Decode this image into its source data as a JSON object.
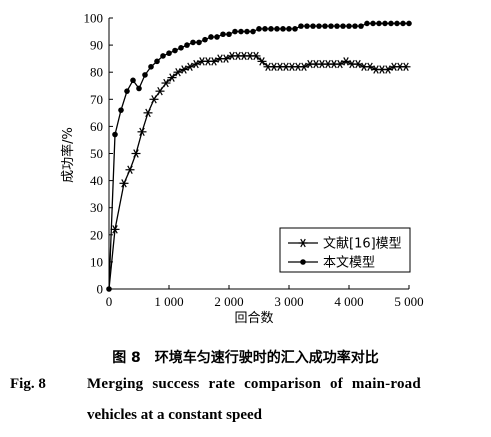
{
  "chart_data": {
    "type": "line",
    "xlabel": "回合数",
    "ylabel": "成功率/%",
    "xlim": [
      0,
      5000
    ],
    "ylim": [
      0,
      100
    ],
    "x_ticks": [
      "0",
      "1 000",
      "2 000",
      "3 000",
      "4 000",
      "5 000"
    ],
    "y_ticks": [
      "0",
      "10",
      "20",
      "30",
      "40",
      "50",
      "60",
      "70",
      "80",
      "90",
      "100"
    ],
    "grid": false,
    "legend_position": "bottom-right",
    "series": [
      {
        "name": "文献[16]模型",
        "marker": "asterisk",
        "x": [
          100,
          250,
          350,
          450,
          550,
          650,
          750,
          850,
          950,
          1050,
          1150,
          1250,
          1350,
          1450,
          1550,
          1650,
          1750,
          1850,
          1950,
          2050,
          2150,
          2250,
          2350,
          2450,
          2550,
          2650,
          2750,
          2850,
          2950,
          3050,
          3150,
          3250,
          3350,
          3450,
          3550,
          3650,
          3750,
          3850,
          3950,
          4050,
          4150,
          4250,
          4350,
          4450,
          4550,
          4650,
          4750,
          4850,
          4950
        ],
        "y": [
          22,
          39,
          44,
          50,
          58,
          65,
          70,
          73,
          76,
          78,
          80,
          81,
          82,
          83,
          84,
          84,
          84,
          85,
          85,
          86,
          86,
          86,
          86,
          86,
          84,
          82,
          82,
          82,
          82,
          82,
          82,
          82,
          83,
          83,
          83,
          83,
          83,
          83,
          84,
          83,
          83,
          82,
          82,
          81,
          81,
          81,
          82,
          82,
          82
        ]
      },
      {
        "name": "本文模型",
        "marker": "dot",
        "x": [
          0,
          100,
          200,
          300,
          400,
          500,
          600,
          700,
          800,
          900,
          1000,
          1100,
          1200,
          1300,
          1400,
          1500,
          1600,
          1700,
          1800,
          1900,
          2000,
          2100,
          2200,
          2300,
          2400,
          2500,
          2600,
          2700,
          2800,
          2900,
          3000,
          3100,
          3200,
          3300,
          3400,
          3500,
          3600,
          3700,
          3800,
          3900,
          4000,
          4100,
          4200,
          4300,
          4400,
          4500,
          4600,
          4700,
          4800,
          4900,
          5000
        ],
        "y": [
          0,
          57,
          66,
          73,
          77,
          74,
          79,
          82,
          84,
          86,
          87,
          88,
          89,
          90,
          91,
          91,
          92,
          93,
          93,
          94,
          94,
          95,
          95,
          95,
          95,
          96,
          96,
          96,
          96,
          96,
          96,
          96,
          97,
          97,
          97,
          97,
          97,
          97,
          97,
          97,
          97,
          97,
          97,
          98,
          98,
          98,
          98,
          98,
          98,
          98,
          98
        ]
      }
    ]
  },
  "caption": {
    "cn": "图 8　环境车匀速行驶时的汇入成功率对比",
    "en_label": "Fig. 8",
    "en_line1": "Merging success rate comparison of main-road",
    "en_line2": "vehicles at a constant speed"
  }
}
